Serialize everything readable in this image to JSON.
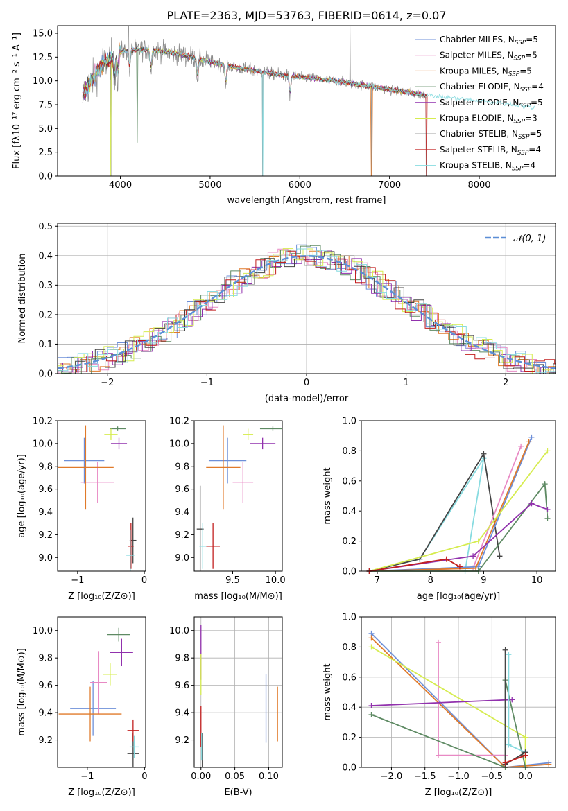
{
  "colors": {
    "Chabrier MILES": "#6d8fd8",
    "Salpeter MILES": "#e889c4",
    "Kroupa MILES": "#e07a2a",
    "Chabrier ELODIE": "#5e8a63",
    "Salpeter ELODIE": "#9131ad",
    "Kroupa ELODIE": "#d6ec4f",
    "Chabrier STELIB": "#444444",
    "Salpeter STELIB": "#c21f1f",
    "Kroupa STELIB": "#87dbe0",
    "data": "#888888",
    "normal": "#5b8ed6"
  },
  "chart_data": [
    {
      "id": "spectrum",
      "type": "line",
      "title": "PLATE=2363, MJD=53763, FIBERID=0614, z=0.07",
      "xlabel": "wavelength [Angstrom, rest frame]",
      "ylabel": "Flux [fλ10⁻¹⁷ erg cm⁻² s⁻¹ A⁻¹]",
      "xlim": [
        3300,
        8850
      ],
      "ylim": [
        0,
        15.8
      ],
      "xticks": [
        4000,
        5000,
        6000,
        7000,
        8000
      ],
      "yticks": [
        0.0,
        2.5,
        5.0,
        7.5,
        10.0,
        12.5,
        15.0
      ],
      "legend_position": "upper-right",
      "legend": [
        {
          "name": "Chabrier MILES",
          "nssp": "5"
        },
        {
          "name": "Salpeter MILES",
          "nssp": "5"
        },
        {
          "name": "Kroupa MILES",
          "nssp": "5"
        },
        {
          "name": "Chabrier ELODIE",
          "nssp": "4"
        },
        {
          "name": "Salpeter ELODIE",
          "nssp": "5"
        },
        {
          "name": "Kroupa ELODIE",
          "nssp": "3"
        },
        {
          "name": "Chabrier STELIB",
          "nssp": "5"
        },
        {
          "name": "Salpeter STELIB",
          "nssp": "4"
        },
        {
          "name": "Kroupa STELIB",
          "nssp": "4"
        }
      ],
      "continuum": {
        "x": [
          3580,
          3700,
          3800,
          3900,
          4000,
          4100,
          4200,
          4400,
          4600,
          4800,
          5000,
          5200,
          5400,
          5600,
          5800,
          6000,
          6200,
          6400,
          6600,
          6800,
          7000,
          7200,
          7400,
          7600,
          7800,
          8000,
          8200,
          8400,
          8600
        ],
        "y": [
          8.5,
          10.3,
          11.8,
          12.3,
          13.0,
          13.3,
          13.3,
          13.2,
          12.9,
          12.5,
          12.0,
          11.6,
          11.2,
          10.9,
          10.6,
          10.4,
          10.2,
          10.0,
          9.7,
          9.4,
          9.1,
          8.8,
          8.5,
          8.3,
          8.1,
          7.9,
          7.7,
          7.5,
          7.2
        ]
      },
      "absorption_lines": [
        3933,
        3968,
        4102,
        4340,
        4861,
        5175,
        5890
      ],
      "dropouts_to_zero": [
        3895,
        5585,
        6800,
        7410
      ],
      "spikes": [
        {
          "x": 6560,
          "y": 15.8
        },
        {
          "x": 4090,
          "y": 15.8
        }
      ]
    },
    {
      "id": "residuals",
      "type": "histogram",
      "xlabel": "(data-model)/error",
      "ylabel": "Normed distribution",
      "xlim": [
        -2.5,
        2.5
      ],
      "ylim": [
        0,
        0.51
      ],
      "xticks": [
        -2,
        -1,
        0,
        1,
        2
      ],
      "yticks": [
        0.0,
        0.1,
        0.2,
        0.3,
        0.4,
        0.5
      ],
      "legend": "𝒩(0, 1)",
      "bin_width": 0.1,
      "grid": true
    },
    {
      "id": "age_vs_Z",
      "type": "errorbar",
      "xlabel": "Z [log₁₀(Z/Z⊙)]",
      "ylabel": "age  [log₁₀(age/yr)]",
      "xlim": [
        -1.3,
        0.02
      ],
      "ylim": [
        8.88,
        10.2
      ],
      "xticks": [
        -1,
        0
      ],
      "yticks": [
        9.0,
        9.2,
        9.4,
        9.6,
        9.8,
        10.0,
        10.2
      ],
      "series": [
        {
          "name": "Chabrier MILES",
          "x": -0.9,
          "xerr": 0.3,
          "y": 9.85,
          "yerr": 0.2
        },
        {
          "name": "Salpeter MILES",
          "x": -0.7,
          "xerr": 0.25,
          "y": 9.66,
          "yerr": 0.18
        },
        {
          "name": "Kroupa MILES",
          "x": -0.88,
          "xerr": 0.42,
          "y": 9.79,
          "yerr": 0.37
        },
        {
          "name": "Chabrier ELODIE",
          "x": -0.4,
          "xerr": 0.12,
          "y": 10.13,
          "yerr": 0.02
        },
        {
          "name": "Salpeter ELODIE",
          "x": -0.38,
          "xerr": 0.12,
          "y": 10.0,
          "yerr": 0.05
        },
        {
          "name": "Kroupa ELODIE",
          "x": -0.5,
          "xerr": 0.1,
          "y": 10.08,
          "yerr": 0.05
        },
        {
          "name": "Chabrier STELIB",
          "x": -0.17,
          "xerr": 0.05,
          "y": 9.15,
          "yerr": 0.2
        },
        {
          "name": "Salpeter STELIB",
          "x": -0.2,
          "xerr": 0.04,
          "y": 9.1,
          "yerr": 0.2
        },
        {
          "name": "Kroupa STELIB",
          "x": -0.21,
          "xerr": 0.06,
          "y": 9.02,
          "yerr": 0.22
        }
      ]
    },
    {
      "id": "age_vs_mass",
      "type": "errorbar",
      "xlabel": "mass [log₁₀(M/M⊙)]",
      "xlim": [
        9.05,
        10.08
      ],
      "ylim": [
        8.88,
        10.2
      ],
      "xticks": [
        9.5,
        10.0
      ],
      "yticks": [
        9.0,
        9.2,
        9.4,
        9.6,
        9.8,
        10.0,
        10.2
      ],
      "series": [
        {
          "name": "Chabrier MILES",
          "x": 9.44,
          "xerr": 0.22,
          "y": 9.85,
          "yerr": 0.2
        },
        {
          "name": "Salpeter MILES",
          "x": 9.62,
          "xerr": 0.12,
          "y": 9.66,
          "yerr": 0.18
        },
        {
          "name": "Kroupa MILES",
          "x": 9.39,
          "xerr": 0.2,
          "y": 9.79,
          "yerr": 0.37
        },
        {
          "name": "Chabrier ELODIE",
          "x": 9.97,
          "xerr": 0.15,
          "y": 10.13,
          "yerr": 0.02
        },
        {
          "name": "Salpeter ELODIE",
          "x": 9.85,
          "xerr": 0.15,
          "y": 10.0,
          "yerr": 0.05
        },
        {
          "name": "Kroupa ELODIE",
          "x": 9.68,
          "xerr": 0.06,
          "y": 10.08,
          "yerr": 0.05
        },
        {
          "name": "Chabrier STELIB",
          "x": 9.12,
          "xerr": 0.04,
          "y": 9.25,
          "yerr": 0.38
        },
        {
          "name": "Salpeter STELIB",
          "x": 9.27,
          "xerr": 0.08,
          "y": 9.1,
          "yerr": 0.2
        },
        {
          "name": "Kroupa STELIB",
          "x": 9.15,
          "xerr": 0.04,
          "y": 9.1,
          "yerr": 0.2
        }
      ]
    },
    {
      "id": "mass_weight_vs_age",
      "type": "line",
      "xlabel": "age  [log₁₀(age/yr)]",
      "ylabel": "mass weight",
      "xlim": [
        6.7,
        10.35
      ],
      "ylim": [
        0,
        1.0
      ],
      "xticks": [
        7,
        8,
        9,
        10
      ],
      "yticks": [
        0.0,
        0.2,
        0.4,
        0.6,
        0.8,
        1.0
      ],
      "series": [
        {
          "name": "Kroupa STELIB",
          "x": [
            6.85,
            7.8,
            9.0,
            8.65
          ],
          "y": [
            0.0,
            0.08,
            0.75,
            0.0
          ]
        },
        {
          "name": "Chabrier STELIB",
          "x": [
            6.85,
            7.8,
            9.0,
            9.3
          ],
          "y": [
            0.0,
            0.08,
            0.78,
            0.1
          ]
        },
        {
          "name": "Salpeter MILES",
          "x": [
            6.85,
            8.8,
            9.7
          ],
          "y": [
            0.0,
            0.02,
            0.83
          ]
        },
        {
          "name": "Chabrier MILES",
          "x": [
            6.85,
            8.9,
            9.9
          ],
          "y": [
            0.0,
            0.03,
            0.89
          ]
        },
        {
          "name": "Kroupa MILES",
          "x": [
            6.85,
            8.85,
            9.85
          ],
          "y": [
            0.0,
            0.02,
            0.86
          ]
        },
        {
          "name": "Kroupa ELODIE",
          "x": [
            6.85,
            8.9,
            10.2
          ],
          "y": [
            0.0,
            0.2,
            0.8
          ]
        },
        {
          "name": "Chabrier ELODIE",
          "x": [
            6.85,
            8.9,
            10.15,
            10.2
          ],
          "y": [
            0.0,
            0.0,
            0.58,
            0.35
          ]
        },
        {
          "name": "Salpeter ELODIE",
          "x": [
            6.85,
            8.8,
            9.9,
            10.2
          ],
          "y": [
            0.0,
            0.1,
            0.45,
            0.41
          ]
        },
        {
          "name": "Salpeter STELIB",
          "x": [
            6.85,
            8.3,
            8.55
          ],
          "y": [
            0.0,
            0.08,
            0.03
          ]
        }
      ]
    },
    {
      "id": "mass_vs_Z",
      "type": "errorbar",
      "xlabel": "Z [log₁₀(Z/Z⊙)]",
      "ylabel": "mass [log₁₀(M/M⊙)]",
      "xlim": [
        -1.52,
        0.02
      ],
      "ylim": [
        9.0,
        10.1
      ],
      "xticks": [
        -1,
        0
      ],
      "yticks": [
        9.2,
        9.4,
        9.6,
        9.8,
        10.0
      ],
      "series": [
        {
          "name": "Chabrier MILES",
          "x": -0.9,
          "xerr": 0.4,
          "y": 9.43,
          "yerr": 0.2
        },
        {
          "name": "Salpeter MILES",
          "x": -0.8,
          "xerr": 0.15,
          "y": 9.62,
          "yerr": 0.23
        },
        {
          "name": "Kroupa MILES",
          "x": -0.95,
          "xerr": 0.55,
          "y": 9.39,
          "yerr": 0.2
        },
        {
          "name": "Chabrier ELODIE",
          "x": -0.45,
          "xerr": 0.2,
          "y": 9.97,
          "yerr": 0.05
        },
        {
          "name": "Salpeter ELODIE",
          "x": -0.4,
          "xerr": 0.2,
          "y": 9.84,
          "yerr": 0.1
        },
        {
          "name": "Kroupa ELODIE",
          "x": -0.6,
          "xerr": 0.12,
          "y": 9.68,
          "yerr": 0.08
        },
        {
          "name": "Chabrier STELIB",
          "x": -0.2,
          "xerr": 0.1,
          "y": 9.1,
          "yerr": 0.15
        },
        {
          "name": "Salpeter STELIB",
          "x": -0.2,
          "xerr": 0.1,
          "y": 9.27,
          "yerr": 0.08
        },
        {
          "name": "Kroupa STELIB",
          "x": -0.18,
          "xerr": 0.08,
          "y": 9.15,
          "yerr": 0.08
        }
      ]
    },
    {
      "id": "mass_vs_ebv",
      "type": "errorbar",
      "xlabel": "E(B-V)",
      "xlim": [
        -0.01,
        0.12
      ],
      "ylim": [
        9.0,
        10.1
      ],
      "xticks": [
        0.0,
        0.05,
        0.1
      ],
      "yticks": [
        9.2,
        9.4,
        9.6,
        9.8,
        10.0
      ],
      "grid": true,
      "series": [
        {
          "name": "Chabrier MILES",
          "x": 0.096,
          "y": 9.43,
          "yerr": 0.25
        },
        {
          "name": "Kroupa MILES",
          "x": 0.113,
          "y": 9.39,
          "yerr": 0.2
        },
        {
          "name": "Salpeter ELODIE",
          "x": 0.0,
          "y": 9.84,
          "yerr": 0.2
        },
        {
          "name": "Kroupa ELODIE",
          "x": 0.0,
          "y": 9.68,
          "yerr": 0.15
        },
        {
          "name": "Chabrier STELIB",
          "x": 0.002,
          "y": 9.1,
          "yerr": 0.15
        },
        {
          "name": "Salpeter STELIB",
          "x": 0.0,
          "y": 9.3,
          "yerr": 0.15
        },
        {
          "name": "Kroupa STELIB",
          "x": 0.001,
          "y": 9.15,
          "yerr": 0.1
        }
      ]
    },
    {
      "id": "mass_weight_vs_Z",
      "type": "line",
      "xlabel": "Z [log₁₀(Z/Z⊙)]",
      "ylabel": "mass weight",
      "xlim": [
        -2.45,
        0.45
      ],
      "ylim": [
        0,
        1.0
      ],
      "xticks": [
        -2.0,
        -1.5,
        -1.0,
        -0.5,
        0.0
      ],
      "yticks": [
        0.0,
        0.2,
        0.4,
        0.6,
        0.8,
        1.0
      ],
      "grid": true,
      "series": [
        {
          "name": "Chabrier MILES",
          "x": [
            -2.3,
            -0.3,
            0.35
          ],
          "y": [
            0.89,
            0.0,
            0.03
          ]
        },
        {
          "name": "Kroupa MILES",
          "x": [
            -2.3,
            -0.3,
            0.35
          ],
          "y": [
            0.86,
            0.0,
            0.02
          ]
        },
        {
          "name": "Salpeter MILES",
          "x": [
            -1.3,
            -1.3,
            -0.3
          ],
          "y": [
            0.83,
            0.08,
            0.08
          ]
        },
        {
          "name": "Kroupa ELODIE",
          "x": [
            -2.3,
            0.0,
            0.0
          ],
          "y": [
            0.8,
            0.2,
            0.0
          ]
        },
        {
          "name": "Chabrier ELODIE",
          "x": [
            -2.3,
            -0.3,
            -0.3,
            0.0
          ],
          "y": [
            0.35,
            0.0,
            0.58,
            0.0
          ]
        },
        {
          "name": "Salpeter ELODIE",
          "x": [
            -2.3,
            -0.2
          ],
          "y": [
            0.41,
            0.45
          ]
        },
        {
          "name": "Kroupa STELIB",
          "x": [
            -0.25,
            -0.25,
            0.0
          ],
          "y": [
            0.75,
            0.15,
            0.1
          ]
        },
        {
          "name": "Chabrier STELIB",
          "x": [
            -0.3,
            -0.3,
            0.0
          ],
          "y": [
            0.78,
            0.02,
            0.1
          ]
        },
        {
          "name": "Salpeter STELIB",
          "x": [
            -0.3,
            0.0
          ],
          "y": [
            0.03,
            0.08
          ]
        }
      ]
    }
  ]
}
